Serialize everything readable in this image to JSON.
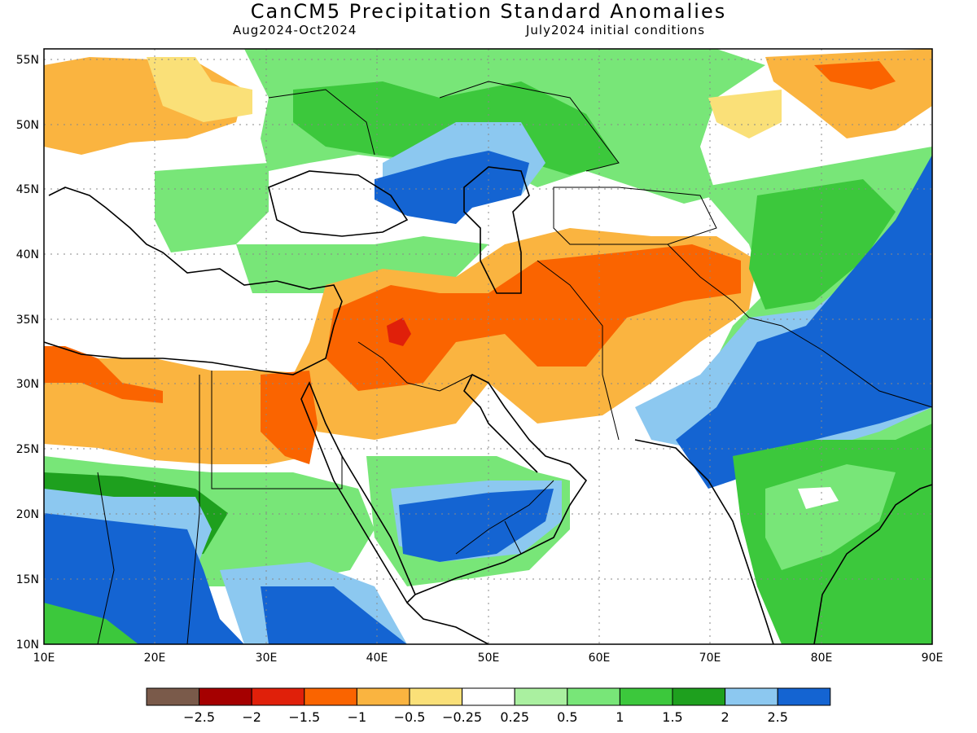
{
  "title": "CanCM5 Precipitation Standard Anomalies",
  "period": "Aug2024-Oct2024",
  "initial_conditions": "July2024 initial conditions",
  "axes": {
    "lon_labels": [
      "10E",
      "20E",
      "30E",
      "40E",
      "50E",
      "60E",
      "70E",
      "80E",
      "90E"
    ],
    "lat_labels": [
      "10N",
      "15N",
      "20N",
      "25N",
      "30N",
      "35N",
      "40N",
      "45N",
      "50N",
      "55N"
    ]
  },
  "colorbar": {
    "colors": [
      "#7a5a4a",
      "#a50000",
      "#e0200a",
      "#fa6400",
      "#fab440",
      "#fae078",
      "#ffffff",
      "#aaf0a0",
      "#78e678",
      "#3cc83c",
      "#1ea01e",
      "#8cc8f0",
      "#1464d2"
    ],
    "labels": [
      "-2.5",
      "-2",
      "-1.5",
      "-1",
      "-0.5",
      "-0.25",
      "0.25",
      "0.5",
      "1",
      "1.5",
      "2",
      "2.5"
    ]
  },
  "palette": {
    "orange_light": "#fab440",
    "yellow": "#fae078",
    "orange": "#fa6400",
    "red": "#e0200a",
    "green_light": "#aaf0a0",
    "green": "#78e678",
    "green_mid": "#3cc83c",
    "green_dark": "#1ea01e",
    "blue_light": "#8cc8f0",
    "blue": "#1464d2"
  }
}
